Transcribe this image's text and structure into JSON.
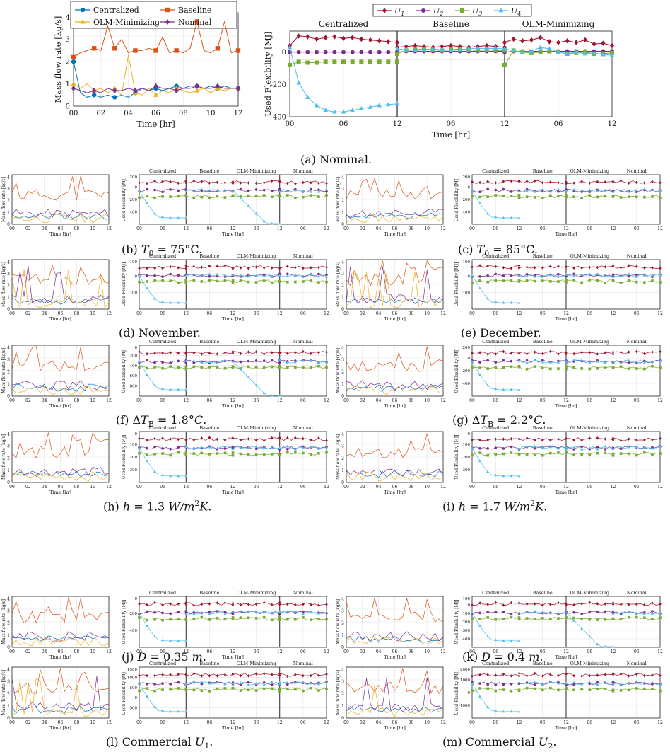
{
  "colors": {
    "centralized": "#0072BD",
    "baseline": "#D95319",
    "olm": "#EDB120",
    "nominal": "#7E2F8E",
    "u1": "#A2142F",
    "u2": "#7E2F8E",
    "u3": "#77AC30",
    "u4": "#4DBEEE"
  },
  "legends": {
    "mass": [
      "Centralized",
      "Baseline",
      "OLM-Minimizing",
      "Nominal"
    ],
    "flex": [
      "U1",
      "U2",
      "U3",
      "U4"
    ]
  },
  "sections": [
    "Centralized",
    "Baseline",
    "OLM-Minimizing",
    "Nominal"
  ],
  "captions": {
    "a": "(a) Nominal.",
    "b": "(b) T0 = 75°C.",
    "c": "(c) T0 = 85°C.",
    "d": "(d) November.",
    "e": "(e) December.",
    "f": "(f) ΔTB = 1.8°C.",
    "g": "(g) ΔTB = 2.2°C.",
    "h": "(h) h = 1.3 W/m2K.",
    "i": "(i) h = 1.7 W/m2K.",
    "j": "(j) D = 0.35 m.",
    "k": "(k) D = 0.4 m.",
    "l": "(l) Commercial U1.",
    "m": "(m) Commercial U2."
  },
  "chart_data": [
    {
      "id": "a-mass",
      "type": "line",
      "xlabel": "Time [hr]",
      "ylabel": "Mass flow rate [kg/s]",
      "xticks": [
        "00",
        "02",
        "04",
        "06",
        "08",
        "10",
        "12"
      ],
      "yticks": [
        0,
        1,
        2,
        3,
        4
      ],
      "ylim": [
        0,
        4.2
      ],
      "x": [
        0,
        0.5,
        1,
        1.5,
        2,
        2.5,
        3,
        3.5,
        4,
        4.5,
        5,
        5.5,
        6,
        6.5,
        7,
        7.5,
        8,
        8.5,
        9,
        9.5,
        10,
        10.5,
        11,
        11.5,
        12
      ],
      "series": [
        {
          "name": "Centralized",
          "values": [
            2.0,
            0.6,
            0.4,
            0.5,
            0.4,
            0.5,
            0.4,
            0.5,
            0.4,
            0.6,
            0.8,
            0.7,
            0.8,
            0.7,
            0.8,
            0.9,
            0.8,
            0.9,
            0.9,
            0.8,
            0.9,
            0.8,
            0.9,
            0.8,
            0.8
          ]
        },
        {
          "name": "Baseline",
          "values": [
            2.2,
            2.4,
            2.5,
            2.6,
            2.5,
            3.6,
            2.6,
            3.0,
            2.4,
            2.5,
            2.5,
            2.6,
            2.5,
            3.1,
            2.4,
            2.5,
            2.4,
            2.6,
            3.8,
            2.5,
            2.4,
            2.6,
            3.8,
            2.4,
            2.5
          ]
        },
        {
          "name": "OLM-Minimizing",
          "values": [
            1.0,
            0.8,
            1.0,
            0.7,
            0.8,
            0.6,
            0.8,
            0.5,
            2.3,
            0.6,
            0.5,
            0.8,
            0.5,
            0.7,
            0.6,
            0.8,
            0.7,
            0.6,
            0.7,
            0.8,
            0.6,
            0.8,
            0.7,
            0.8,
            0.8
          ]
        },
        {
          "name": "Nominal",
          "values": [
            0.8,
            0.7,
            0.6,
            0.7,
            0.6,
            0.8,
            0.7,
            0.7,
            0.8,
            0.7,
            0.8,
            0.7,
            0.9,
            0.8,
            0.8,
            0.7,
            0.8,
            0.8,
            0.9,
            0.8,
            0.8,
            0.9,
            0.8,
            0.8,
            0.8
          ]
        }
      ]
    },
    {
      "id": "a-flex",
      "type": "line",
      "xlabel": "Time [hr]",
      "ylabel": "Used Flexibility [MJ]",
      "panels": [
        "Centralized",
        "Baseline",
        "OLM-Minimizing"
      ],
      "xticks": [
        "00",
        "06",
        "12",
        "06",
        "12",
        "06",
        "12"
      ],
      "yticks": [
        -400,
        -200,
        0
      ],
      "ylim": [
        -400,
        130
      ],
      "x": [
        0,
        1,
        2,
        3,
        4,
        5,
        6,
        7,
        8,
        9,
        10,
        11,
        12
      ],
      "series": [
        {
          "name": "U1",
          "values": [
            [
              40,
              100,
              95,
              80,
              90,
              95,
              85,
              90,
              80,
              75,
              70,
              65,
              60
            ],
            [
              30,
              35,
              40,
              35,
              30,
              35,
              40,
              35,
              30,
              35,
              40,
              35,
              30
            ],
            [
              60,
              80,
              70,
              75,
              90,
              65,
              60,
              70,
              60,
              75,
              50,
              55,
              40
            ]
          ]
        },
        {
          "name": "U2",
          "values": [
            [
              0,
              0,
              0,
              0,
              0,
              0,
              0,
              0,
              0,
              0,
              0,
              0,
              0
            ],
            [
              0,
              5,
              5,
              5,
              5,
              5,
              5,
              5,
              5,
              5,
              5,
              5,
              5
            ],
            [
              0,
              5,
              5,
              5,
              5,
              5,
              5,
              5,
              5,
              5,
              5,
              5,
              5
            ]
          ]
        },
        {
          "name": "U3",
          "values": [
            [
              -80,
              -60,
              -65,
              -65,
              -60,
              -60,
              -60,
              -60,
              -60,
              -60,
              -60,
              -60,
              -60
            ],
            [
              -10,
              10,
              15,
              20,
              15,
              10,
              15,
              20,
              15,
              10,
              15,
              10,
              10
            ],
            [
              -80,
              10,
              0,
              -5,
              0,
              5,
              0,
              -10,
              -5,
              0,
              -10,
              -10,
              -5
            ]
          ]
        },
        {
          "name": "U4",
          "values": [
            [
              30,
              -190,
              -280,
              -330,
              -360,
              -370,
              -370,
              -360,
              -350,
              -340,
              -330,
              -325,
              -320
            ],
            [
              20,
              15,
              10,
              15,
              20,
              15,
              10,
              15,
              20,
              25,
              20,
              25,
              20
            ],
            [
              20,
              10,
              0,
              5,
              30,
              20,
              0,
              -10,
              0,
              -10,
              -5,
              -15,
              -20
            ]
          ]
        }
      ]
    }
  ]
}
